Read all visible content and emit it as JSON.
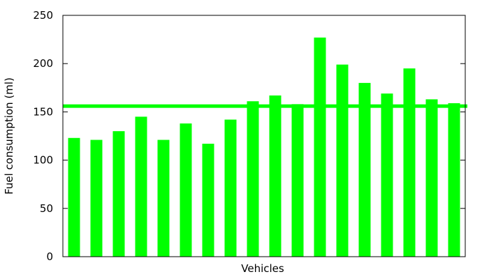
{
  "chart_data": {
    "type": "bar",
    "xlabel": "Vehicles",
    "ylabel": "Fuel consumption (ml)",
    "ylim": [
      0,
      250
    ],
    "yticks": [
      "0",
      "50",
      "100",
      "150",
      "200",
      "250"
    ],
    "grid": false,
    "categories": [
      "",
      "",
      "",
      "",
      "",
      "",
      "",
      "",
      "",
      "",
      "",
      "",
      "",
      "",
      "",
      "",
      "",
      ""
    ],
    "values": [
      123,
      121,
      130,
      145,
      121,
      138,
      117,
      142,
      161,
      167,
      158,
      227,
      199,
      180,
      169,
      195,
      163,
      159
    ],
    "reference_line": 156,
    "colors": {
      "bars": "#00ff00",
      "reference_line": "#00ff00",
      "axis": "#000000"
    }
  }
}
